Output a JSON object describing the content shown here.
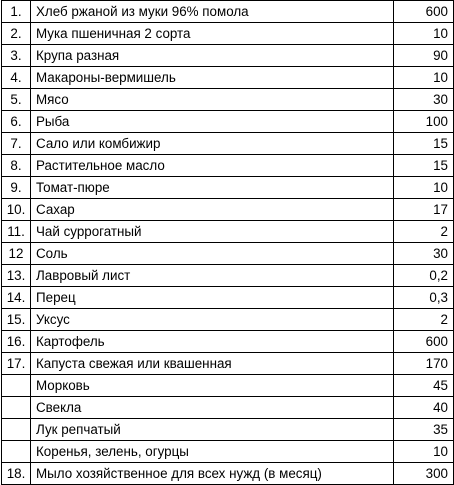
{
  "rows": [
    {
      "num": "1.",
      "name": "Хлеб ржаной из муки 96% помола",
      "value": "600"
    },
    {
      "num": "2.",
      "name": "Мука пшеничная 2 сорта",
      "value": "10"
    },
    {
      "num": "3.",
      "name": "Крупа разная",
      "value": "90"
    },
    {
      "num": "4.",
      "name": "Макароны-вермишель",
      "value": "10"
    },
    {
      "num": "5.",
      "name": "Мясо",
      "value": "30"
    },
    {
      "num": "6.",
      "name": "Рыба",
      "value": "100"
    },
    {
      "num": "7.",
      "name": "Сало или комбижир",
      "value": "15"
    },
    {
      "num": "8.",
      "name": "Растительное масло",
      "value": "15"
    },
    {
      "num": "9.",
      "name": "Томат-пюре",
      "value": "10"
    },
    {
      "num": "10.",
      "name": "Сахар",
      "value": "17"
    },
    {
      "num": "11.",
      "name": "Чай суррогатный",
      "value": "2"
    },
    {
      "num": "12",
      "name": "Соль",
      "value": "30"
    },
    {
      "num": "13.",
      "name": "Лавровый лист",
      "value": "0,2"
    },
    {
      "num": "14.",
      "name": "Перец",
      "value": "0,3"
    },
    {
      "num": "15.",
      "name": "Уксус",
      "value": "2"
    },
    {
      "num": "16.",
      "name": "Картофель",
      "value": "600"
    },
    {
      "num": "17.",
      "name": "Капуста свежая или квашенная",
      "value": "170"
    },
    {
      "num": "",
      "name": "Морковь",
      "value": "45"
    },
    {
      "num": "",
      "name": "Свекла",
      "value": "40"
    },
    {
      "num": "",
      "name": "Лук репчатый",
      "value": "35"
    },
    {
      "num": "",
      "name": "Коренья, зелень, огурцы",
      "value": "10"
    },
    {
      "num": "18.",
      "name": "Мыло хозяйственное для всех нужд (в месяц)",
      "value": "300"
    }
  ]
}
